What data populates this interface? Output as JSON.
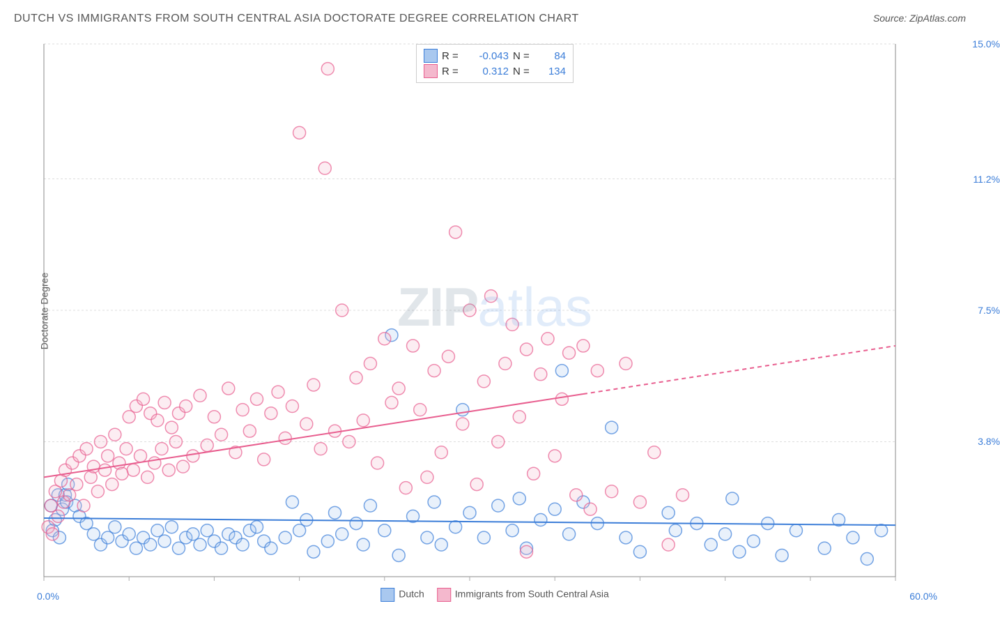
{
  "title": "DUTCH VS IMMIGRANTS FROM SOUTH CENTRAL ASIA DOCTORATE DEGREE CORRELATION CHART",
  "source": "Source: ZipAtlas.com",
  "y_axis_label": "Doctorate Degree",
  "watermark_zip": "ZIP",
  "watermark_atlas": "atlas",
  "chart": {
    "type": "scatter",
    "background_color": "#ffffff",
    "grid_color": "#dddddd",
    "axis_color": "#888888",
    "tick_color": "#aaaaaa",
    "xlim": [
      0,
      60
    ],
    "ylim": [
      0,
      15
    ],
    "x_ticks": [
      0,
      6,
      12,
      18,
      24,
      30,
      36,
      42,
      48,
      54,
      60
    ],
    "y_ticks": [
      0,
      3.8,
      7.5,
      11.2,
      15.0
    ],
    "x_tick_labels": {
      "0": "0.0%",
      "60": "60.0%"
    },
    "y_tick_labels": {
      "3.8": "3.8%",
      "7.5": "7.5%",
      "11.2": "11.2%",
      "15.0": "15.0%"
    },
    "marker_radius": 9,
    "marker_stroke_width": 1.5,
    "marker_fill_opacity": 0.25,
    "trend_line_width": 2,
    "series": [
      {
        "name": "Dutch",
        "color_stroke": "#3b7dd8",
        "color_fill": "#a9c8ef",
        "R": "-0.043",
        "N": "84",
        "trend": {
          "x0": 0,
          "y0": 1.65,
          "x1": 60,
          "y1": 1.45,
          "solid_until_x": 60
        },
        "points": [
          [
            0.5,
            2.0
          ],
          [
            0.8,
            1.6
          ],
          [
            1.0,
            2.3
          ],
          [
            1.3,
            1.9
          ],
          [
            1.5,
            2.3
          ],
          [
            1.6,
            2.1
          ],
          [
            1.7,
            2.6
          ],
          [
            2.2,
            2.0
          ],
          [
            0.6,
            1.3
          ],
          [
            1.1,
            1.1
          ],
          [
            2.5,
            1.7
          ],
          [
            3.0,
            1.5
          ],
          [
            3.5,
            1.2
          ],
          [
            4.0,
            0.9
          ],
          [
            4.5,
            1.1
          ],
          [
            5.0,
            1.4
          ],
          [
            5.5,
            1.0
          ],
          [
            6.0,
            1.2
          ],
          [
            6.5,
            0.8
          ],
          [
            7.0,
            1.1
          ],
          [
            7.5,
            0.9
          ],
          [
            8.0,
            1.3
          ],
          [
            8.5,
            1.0
          ],
          [
            9.0,
            1.4
          ],
          [
            9.5,
            0.8
          ],
          [
            10.0,
            1.1
          ],
          [
            10.5,
            1.2
          ],
          [
            11.0,
            0.9
          ],
          [
            11.5,
            1.3
          ],
          [
            12.0,
            1.0
          ],
          [
            12.5,
            0.8
          ],
          [
            13.0,
            1.2
          ],
          [
            13.5,
            1.1
          ],
          [
            14.0,
            0.9
          ],
          [
            14.5,
            1.3
          ],
          [
            15.0,
            1.4
          ],
          [
            15.5,
            1.0
          ],
          [
            16.0,
            0.8
          ],
          [
            17.0,
            1.1
          ],
          [
            17.5,
            2.1
          ],
          [
            18.0,
            1.3
          ],
          [
            18.5,
            1.6
          ],
          [
            19.0,
            0.7
          ],
          [
            20.0,
            1.0
          ],
          [
            20.5,
            1.8
          ],
          [
            21.0,
            1.2
          ],
          [
            22.0,
            1.5
          ],
          [
            22.5,
            0.9
          ],
          [
            23.0,
            2.0
          ],
          [
            24.0,
            1.3
          ],
          [
            24.5,
            6.8
          ],
          [
            25.0,
            0.6
          ],
          [
            26.0,
            1.7
          ],
          [
            27.0,
            1.1
          ],
          [
            27.5,
            2.1
          ],
          [
            28.0,
            0.9
          ],
          [
            29.0,
            1.4
          ],
          [
            29.5,
            4.7
          ],
          [
            30.0,
            1.8
          ],
          [
            31.0,
            1.1
          ],
          [
            32.0,
            2.0
          ],
          [
            33.0,
            1.3
          ],
          [
            33.5,
            2.2
          ],
          [
            34.0,
            0.8
          ],
          [
            35.0,
            1.6
          ],
          [
            36.0,
            1.9
          ],
          [
            36.5,
            5.8
          ],
          [
            37.0,
            1.2
          ],
          [
            38.0,
            2.1
          ],
          [
            39.0,
            1.5
          ],
          [
            40.0,
            4.2
          ],
          [
            41.0,
            1.1
          ],
          [
            42.0,
            0.7
          ],
          [
            44.0,
            1.8
          ],
          [
            44.5,
            1.3
          ],
          [
            46.0,
            1.5
          ],
          [
            47.0,
            0.9
          ],
          [
            48.0,
            1.2
          ],
          [
            48.5,
            2.2
          ],
          [
            49.0,
            0.7
          ],
          [
            50.0,
            1.0
          ],
          [
            51.0,
            1.5
          ],
          [
            52.0,
            0.6
          ],
          [
            53.0,
            1.3
          ],
          [
            55.0,
            0.8
          ],
          [
            56.0,
            1.6
          ],
          [
            57.0,
            1.1
          ],
          [
            58.0,
            0.5
          ],
          [
            59.0,
            1.3
          ]
        ]
      },
      {
        "name": "Immigrants from South Central Asia",
        "color_stroke": "#e85d8e",
        "color_fill": "#f4b8cd",
        "R": "0.312",
        "N": "134",
        "trend": {
          "x0": 0,
          "y0": 2.8,
          "x1": 60,
          "y1": 6.5,
          "solid_until_x": 38
        },
        "points": [
          [
            0.3,
            1.4
          ],
          [
            0.5,
            2.0
          ],
          [
            0.6,
            1.2
          ],
          [
            0.8,
            2.4
          ],
          [
            1.0,
            1.7
          ],
          [
            1.2,
            2.7
          ],
          [
            1.4,
            2.1
          ],
          [
            1.5,
            3.0
          ],
          [
            1.8,
            2.3
          ],
          [
            2.0,
            3.2
          ],
          [
            2.3,
            2.6
          ],
          [
            2.5,
            3.4
          ],
          [
            2.8,
            2.0
          ],
          [
            3.0,
            3.6
          ],
          [
            3.3,
            2.8
          ],
          [
            3.5,
            3.1
          ],
          [
            3.8,
            2.4
          ],
          [
            4.0,
            3.8
          ],
          [
            4.3,
            3.0
          ],
          [
            4.5,
            3.4
          ],
          [
            4.8,
            2.6
          ],
          [
            5.0,
            4.0
          ],
          [
            5.3,
            3.2
          ],
          [
            5.5,
            2.9
          ],
          [
            5.8,
            3.6
          ],
          [
            6.0,
            4.5
          ],
          [
            6.3,
            3.0
          ],
          [
            6.5,
            4.8
          ],
          [
            6.8,
            3.4
          ],
          [
            7.0,
            5.0
          ],
          [
            7.3,
            2.8
          ],
          [
            7.5,
            4.6
          ],
          [
            7.8,
            3.2
          ],
          [
            8.0,
            4.4
          ],
          [
            8.3,
            3.6
          ],
          [
            8.5,
            4.9
          ],
          [
            8.8,
            3.0
          ],
          [
            9.0,
            4.2
          ],
          [
            9.3,
            3.8
          ],
          [
            9.5,
            4.6
          ],
          [
            9.8,
            3.1
          ],
          [
            10.0,
            4.8
          ],
          [
            10.5,
            3.4
          ],
          [
            11.0,
            5.1
          ],
          [
            11.5,
            3.7
          ],
          [
            12.0,
            4.5
          ],
          [
            12.5,
            4.0
          ],
          [
            13.0,
            5.3
          ],
          [
            13.5,
            3.5
          ],
          [
            14.0,
            4.7
          ],
          [
            14.5,
            4.1
          ],
          [
            15.0,
            5.0
          ],
          [
            15.5,
            3.3
          ],
          [
            16.0,
            4.6
          ],
          [
            16.5,
            5.2
          ],
          [
            17.0,
            3.9
          ],
          [
            17.5,
            4.8
          ],
          [
            18.0,
            12.5
          ],
          [
            18.5,
            4.3
          ],
          [
            19.0,
            5.4
          ],
          [
            19.5,
            3.6
          ],
          [
            20.0,
            14.3
          ],
          [
            19.8,
            11.5
          ],
          [
            20.5,
            4.1
          ],
          [
            21.0,
            7.5
          ],
          [
            21.5,
            3.8
          ],
          [
            22.0,
            5.6
          ],
          [
            22.5,
            4.4
          ],
          [
            23.0,
            6.0
          ],
          [
            23.5,
            3.2
          ],
          [
            24.0,
            6.7
          ],
          [
            24.5,
            4.9
          ],
          [
            25.0,
            5.3
          ],
          [
            25.5,
            2.5
          ],
          [
            26.0,
            6.5
          ],
          [
            26.5,
            4.7
          ],
          [
            27.0,
            2.8
          ],
          [
            27.5,
            5.8
          ],
          [
            28.0,
            3.5
          ],
          [
            28.5,
            6.2
          ],
          [
            29.0,
            9.7
          ],
          [
            29.5,
            4.3
          ],
          [
            30.0,
            7.5
          ],
          [
            30.5,
            2.6
          ],
          [
            31.0,
            5.5
          ],
          [
            31.5,
            7.9
          ],
          [
            32.0,
            3.8
          ],
          [
            32.5,
            6.0
          ],
          [
            33.0,
            7.1
          ],
          [
            33.5,
            4.5
          ],
          [
            34.0,
            6.4
          ],
          [
            34.5,
            2.9
          ],
          [
            35.0,
            5.7
          ],
          [
            35.5,
            6.7
          ],
          [
            36.0,
            3.4
          ],
          [
            36.5,
            5.0
          ],
          [
            37.0,
            6.3
          ],
          [
            37.5,
            2.3
          ],
          [
            38.0,
            6.5
          ],
          [
            38.5,
            1.9
          ],
          [
            39.0,
            5.8
          ],
          [
            40.0,
            2.4
          ],
          [
            41.0,
            6.0
          ],
          [
            42.0,
            2.1
          ],
          [
            43.0,
            3.5
          ],
          [
            44.0,
            0.9
          ],
          [
            45.0,
            2.3
          ],
          [
            34.0,
            0.7
          ]
        ]
      }
    ]
  },
  "stats_box": {
    "r_label": "R =",
    "n_label": "N ="
  },
  "legend": {
    "series1_label": "Dutch",
    "series2_label": "Immigrants from South Central Asia"
  }
}
